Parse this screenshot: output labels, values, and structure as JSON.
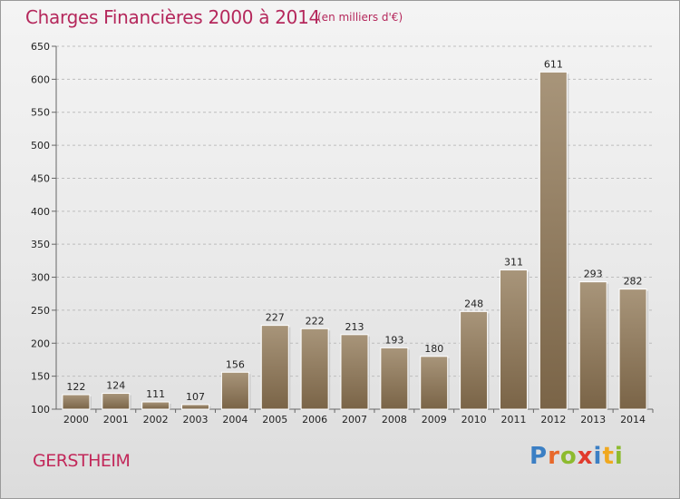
{
  "header": {
    "title": "Charges Financières 2000 à 2014",
    "unit": "(en milliers d'€)"
  },
  "footer": {
    "town": "GERSTHEIM",
    "brand_letters": [
      {
        "char": "P",
        "color": "#3b7fc4"
      },
      {
        "char": "r",
        "color": "#e8682a"
      },
      {
        "char": "o",
        "color": "#8dbb2f"
      },
      {
        "char": "x",
        "color": "#e13b2d"
      },
      {
        "char": "i",
        "color": "#3b7fc4"
      },
      {
        "char": "t",
        "color": "#f0a81f"
      },
      {
        "char": "i",
        "color": "#8dbb2f"
      }
    ]
  },
  "chart_data": {
    "type": "bar",
    "title": "Charges Financières 2000 à 2014",
    "subtitle": "(en milliers d'€)",
    "categories": [
      "2000",
      "2001",
      "2002",
      "2003",
      "2004",
      "2005",
      "2006",
      "2007",
      "2008",
      "2009",
      "2010",
      "2011",
      "2012",
      "2013",
      "2014"
    ],
    "values": [
      122,
      124,
      111,
      107,
      156,
      227,
      222,
      213,
      193,
      180,
      248,
      311,
      611,
      293,
      282
    ],
    "xlabel": "",
    "ylabel": "",
    "ylim": [
      100,
      650
    ],
    "yticks": [
      100,
      150,
      200,
      250,
      300,
      350,
      400,
      450,
      500,
      550,
      600,
      650
    ],
    "grid": true,
    "bar_color_top": "#a8957a",
    "bar_color_bottom": "#7a6447",
    "grid_color": "#bdbdbd"
  }
}
